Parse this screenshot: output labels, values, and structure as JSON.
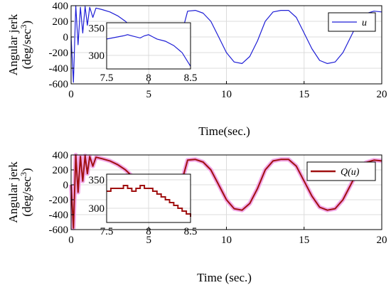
{
  "chart_data": [
    {
      "type": "line",
      "xlabel": "Time(sec.)",
      "ylabel_line1": "Angular jerk",
      "ylabel_line2": "(deg/sec",
      "ylabel_sup": "3",
      "ylabel_close": ")",
      "xlim": [
        0,
        20
      ],
      "ylim": [
        -600,
        400
      ],
      "xticks": [
        "0",
        "5",
        "10",
        "15",
        "20"
      ],
      "yticks": [
        "-600",
        "-400",
        "-200",
        "0",
        "200",
        "400"
      ],
      "grid": true,
      "legend_position": "top-right",
      "series": [
        {
          "name": "u",
          "color": "#1f1fd6",
          "x": [
            0,
            0.15,
            0.3,
            0.45,
            0.6,
            0.75,
            0.9,
            1.05,
            1.2,
            1.4,
            1.6,
            2.0,
            2.5,
            3.0,
            3.5,
            4.0,
            4.5,
            5.0,
            5.5,
            6.0,
            6.5,
            7.0,
            7.5,
            8.0,
            8.5,
            9.0,
            9.5,
            10.0,
            10.5,
            11.0,
            11.5,
            12.0,
            12.5,
            13.0,
            13.5,
            14.0,
            14.5,
            15.0,
            15.5,
            16.0,
            16.5,
            17.0,
            17.5,
            18.0,
            18.5,
            19.0,
            19.5,
            20.0
          ],
          "y": [
            0,
            -580,
            400,
            -100,
            380,
            50,
            390,
            150,
            380,
            250,
            370,
            350,
            320,
            270,
            200,
            100,
            -50,
            -200,
            -320,
            -340,
            -250,
            -50,
            330,
            340,
            305,
            200,
            0,
            -200,
            -320,
            -340,
            -250,
            -50,
            200,
            320,
            340,
            340,
            250,
            50,
            -150,
            -300,
            -340,
            -320,
            -200,
            0,
            200,
            300,
            330,
            320
          ]
        }
      ],
      "inset": {
        "xlim": [
          7.5,
          8.5
        ],
        "ylim": [
          275,
          360
        ],
        "xticks": [
          "7.5",
          "8",
          "8.5"
        ],
        "yticks": [
          "300",
          "350"
        ],
        "x": [
          7.5,
          7.6,
          7.7,
          7.75,
          7.8,
          7.9,
          7.95,
          8.0,
          8.05,
          8.1,
          8.2,
          8.3,
          8.4,
          8.5
        ],
        "y": [
          330,
          333,
          336,
          338,
          336,
          332,
          336,
          338,
          334,
          330,
          326,
          318,
          305,
          280
        ]
      }
    },
    {
      "type": "line",
      "xlabel": "Time (sec.)",
      "ylabel_line1": "Angular jerk",
      "ylabel_line2": "(deg/sec",
      "ylabel_sup": "3",
      "ylabel_close": ")",
      "xlim": [
        0,
        20
      ],
      "ylim": [
        -600,
        400
      ],
      "xticks": [
        "0",
        "5",
        "10",
        "15",
        "20"
      ],
      "yticks": [
        "-600",
        "-400",
        "-200",
        "0",
        "200",
        "400"
      ],
      "grid": true,
      "legend_position": "top-right",
      "series": [
        {
          "name": "Q(u)",
          "color": "#a01010",
          "halo_color": "#f2a8e8",
          "x": [
            0,
            0.15,
            0.3,
            0.45,
            0.6,
            0.75,
            0.9,
            1.05,
            1.2,
            1.4,
            1.6,
            2.0,
            2.5,
            3.0,
            3.5,
            4.0,
            4.5,
            5.0,
            5.5,
            6.0,
            6.5,
            7.0,
            7.5,
            8.0,
            8.5,
            9.0,
            9.5,
            10.0,
            10.5,
            11.0,
            11.5,
            12.0,
            12.5,
            13.0,
            13.5,
            14.0,
            14.5,
            15.0,
            15.5,
            16.0,
            16.5,
            17.0,
            17.5,
            18.0,
            18.5,
            19.0,
            19.5,
            20.0
          ],
          "y": [
            0,
            -580,
            400,
            -100,
            380,
            50,
            390,
            150,
            380,
            250,
            370,
            350,
            320,
            270,
            200,
            100,
            -50,
            -200,
            -320,
            -340,
            -250,
            -50,
            330,
            340,
            305,
            200,
            0,
            -200,
            -320,
            -340,
            -250,
            -50,
            200,
            320,
            340,
            340,
            250,
            50,
            -150,
            -300,
            -340,
            -320,
            -200,
            0,
            200,
            300,
            330,
            320
          ]
        }
      ],
      "inset": {
        "xlim": [
          7.5,
          8.5
        ],
        "ylim": [
          275,
          360
        ],
        "xticks": [
          "7.5",
          "8",
          "8.5"
        ],
        "yticks": [
          "300",
          "350"
        ],
        "x": [
          7.5,
          7.55,
          7.55,
          7.7,
          7.7,
          7.75,
          7.75,
          7.8,
          7.8,
          7.85,
          7.85,
          7.9,
          7.9,
          7.95,
          7.95,
          8.05,
          8.05,
          8.1,
          8.1,
          8.15,
          8.15,
          8.2,
          8.2,
          8.25,
          8.25,
          8.3,
          8.3,
          8.35,
          8.35,
          8.4,
          8.4,
          8.45,
          8.45,
          8.5,
          8.5
        ],
        "y": [
          330,
          330,
          335,
          335,
          340,
          340,
          335,
          335,
          330,
          330,
          335,
          335,
          340,
          340,
          335,
          335,
          330,
          330,
          325,
          325,
          320,
          320,
          315,
          315,
          310,
          310,
          305,
          305,
          300,
          300,
          295,
          295,
          290,
          290,
          285
        ]
      }
    }
  ]
}
